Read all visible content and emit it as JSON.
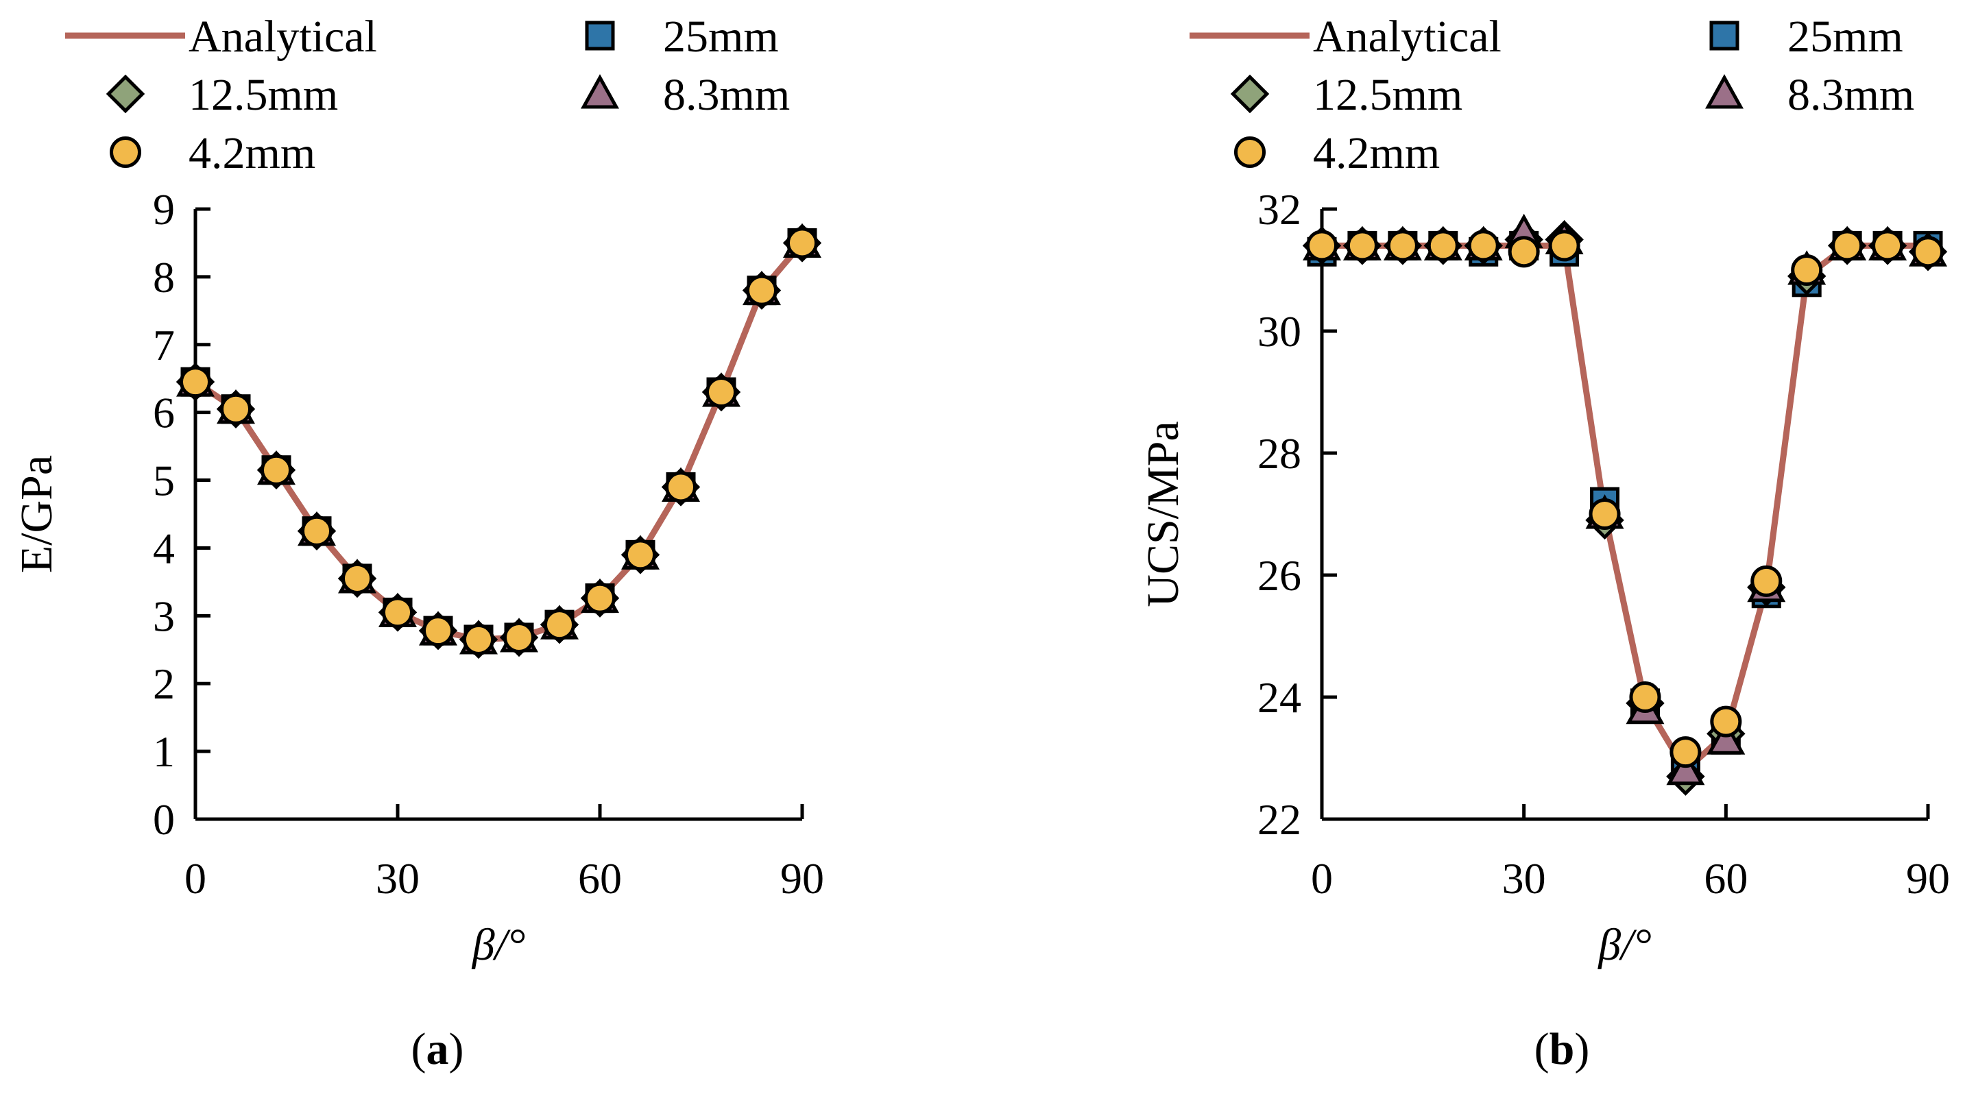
{
  "chart_data": [
    {
      "type": "line",
      "panel_label": "a",
      "title": "",
      "xlabel": "β/°",
      "ylabel": "E/GPa",
      "xlim": [
        0,
        90
      ],
      "ylim": [
        0,
        9
      ],
      "xticks": [
        "0",
        "30",
        "60",
        "90"
      ],
      "yticks": [
        "0",
        "1",
        "2",
        "3",
        "4",
        "5",
        "6",
        "7",
        "8",
        "9"
      ],
      "x": [
        0,
        6,
        12,
        18,
        24,
        30,
        36,
        42,
        48,
        54,
        60,
        66,
        72,
        78,
        84,
        90
      ],
      "legend": [
        "Analytical",
        "25mm",
        "12.5mm",
        "8.3mm",
        "4.2mm"
      ],
      "series": [
        {
          "name": "Analytical",
          "style": "line",
          "color": "#b5655a",
          "values": [
            6.45,
            6.05,
            5.15,
            4.25,
            3.55,
            3.05,
            2.78,
            2.65,
            2.68,
            2.87,
            3.26,
            3.9,
            4.9,
            6.3,
            7.8,
            8.5
          ]
        },
        {
          "name": "25mm",
          "style": "square",
          "color": "#2e75a8",
          "values": [
            6.45,
            6.05,
            5.15,
            4.25,
            3.55,
            3.05,
            2.78,
            2.65,
            2.68,
            2.87,
            3.26,
            3.9,
            4.9,
            6.3,
            7.8,
            8.5
          ]
        },
        {
          "name": "12.5mm",
          "style": "diamond",
          "color": "#8fa37a",
          "values": [
            6.45,
            6.05,
            5.15,
            4.25,
            3.55,
            3.05,
            2.78,
            2.65,
            2.68,
            2.87,
            3.26,
            3.9,
            4.9,
            6.3,
            7.8,
            8.5
          ]
        },
        {
          "name": "8.3mm",
          "style": "triangle",
          "color": "#9b7088",
          "values": [
            6.45,
            6.05,
            5.15,
            4.25,
            3.55,
            3.05,
            2.78,
            2.65,
            2.68,
            2.87,
            3.26,
            3.9,
            4.9,
            6.3,
            7.8,
            8.5
          ]
        },
        {
          "name": "4.2mm",
          "style": "circle",
          "color": "#f2b94a",
          "values": [
            6.45,
            6.05,
            5.15,
            4.25,
            3.55,
            3.05,
            2.78,
            2.65,
            2.68,
            2.87,
            3.26,
            3.9,
            4.9,
            6.3,
            7.8,
            8.5
          ]
        }
      ]
    },
    {
      "type": "line",
      "panel_label": "b",
      "title": "",
      "xlabel": "β/°",
      "ylabel": "UCS/MPa",
      "xlim": [
        0,
        90
      ],
      "ylim": [
        22,
        32
      ],
      "xticks": [
        "0",
        "30",
        "60",
        "90"
      ],
      "yticks": [
        "22",
        "24",
        "26",
        "28",
        "30",
        "32"
      ],
      "x": [
        0,
        6,
        12,
        18,
        24,
        30,
        36,
        42,
        48,
        54,
        60,
        66,
        72,
        78,
        84,
        90
      ],
      "legend": [
        "Analytical",
        "25mm",
        "12.5mm",
        "8.3mm",
        "4.2mm"
      ],
      "series": [
        {
          "name": "Analytical",
          "style": "line",
          "color": "#b5655a",
          "values": [
            31.4,
            31.4,
            31.4,
            31.4,
            31.4,
            31.4,
            31.4,
            27.0,
            23.9,
            22.8,
            23.4,
            25.8,
            30.9,
            31.4,
            31.4,
            31.4
          ]
        },
        {
          "name": "25mm",
          "style": "square",
          "color": "#2e75a8",
          "values": [
            31.3,
            31.4,
            31.4,
            31.4,
            31.3,
            31.4,
            31.3,
            27.2,
            23.9,
            22.9,
            23.3,
            25.7,
            30.8,
            31.4,
            31.4,
            31.4
          ]
        },
        {
          "name": "12.5mm",
          "style": "diamond",
          "color": "#8fa37a",
          "values": [
            31.4,
            31.4,
            31.4,
            31.4,
            31.4,
            31.5,
            31.5,
            26.9,
            23.9,
            22.7,
            23.4,
            25.8,
            30.9,
            31.4,
            31.4,
            31.3
          ]
        },
        {
          "name": "8.3mm",
          "style": "triangle",
          "color": "#9b7088",
          "values": [
            31.4,
            31.4,
            31.4,
            31.4,
            31.4,
            31.6,
            31.5,
            27.0,
            23.8,
            22.8,
            23.3,
            25.8,
            31.0,
            31.4,
            31.4,
            31.3
          ]
        },
        {
          "name": "4.2mm",
          "style": "circle",
          "color": "#f2b94a",
          "values": [
            31.4,
            31.4,
            31.4,
            31.4,
            31.4,
            31.3,
            31.4,
            27.0,
            24.0,
            23.1,
            23.6,
            25.9,
            31.0,
            31.4,
            31.4,
            31.3
          ]
        }
      ]
    }
  ]
}
